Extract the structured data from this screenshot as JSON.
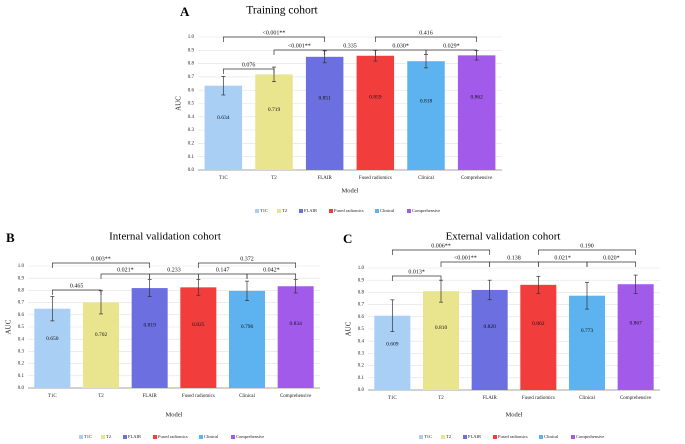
{
  "colors": {
    "T1C": "#a9cff4",
    "T2": "#e8e58e",
    "FLAIR": "#6b6fe0",
    "Fused radiomics": "#f23d3d",
    "Clinical": "#5db3ef",
    "Comprehensive": "#a25aeb",
    "grid": "#e2e2e2",
    "axis": "#888888",
    "text": "#222222"
  },
  "chart_data": [
    {
      "type": "bar",
      "panel_label": "A",
      "title": "Training cohort",
      "xlabel": "Model",
      "ylabel": "AUC",
      "ylim": [
        0,
        1.0
      ],
      "yticks": [
        "0.0",
        "0.1",
        "0.2",
        "0.3",
        "0.4",
        "0.5",
        "0.6",
        "0.7",
        "0.8",
        "0.9",
        "1.0"
      ],
      "categories": [
        "T1C",
        "T2",
        "FLAIR",
        "Fused radiomics",
        "Clinical",
        "Comprehensive"
      ],
      "values": [
        0.634,
        0.719,
        0.851,
        0.859,
        0.818,
        0.862
      ],
      "value_labels": [
        "0.634",
        "0.719",
        "0.851",
        "0.859",
        "0.818",
        "0.862"
      ],
      "errors": [
        0.07,
        0.055,
        0.045,
        0.04,
        0.05,
        0.035
      ],
      "legend": [
        "T1C",
        "T2",
        "FLAIR",
        "Fused radiomics",
        "Clinical",
        "Comprehensive"
      ],
      "comparisons": [
        {
          "from": 0,
          "to": 2,
          "label": "<0.001**",
          "level": 3
        },
        {
          "from": 0,
          "to": 1,
          "label": "0.076",
          "level": 1
        },
        {
          "from": 1,
          "to": 2,
          "label": "<0.001**",
          "level": 2
        },
        {
          "from": 2,
          "to": 3,
          "label": "0.335",
          "level": 2
        },
        {
          "from": 3,
          "to": 4,
          "label": "0.030*",
          "level": 2
        },
        {
          "from": 4,
          "to": 5,
          "label": "0.029*",
          "level": 2
        },
        {
          "from": 3,
          "to": 5,
          "label": "0.416",
          "level": 3
        }
      ]
    },
    {
      "type": "bar",
      "panel_label": "B",
      "title": "Internal validation cohort",
      "xlabel": "Model",
      "ylabel": "AUC",
      "ylim": [
        0,
        1.0
      ],
      "yticks": [
        "0.0",
        "0.1",
        "0.2",
        "0.3",
        "0.4",
        "0.5",
        "0.6",
        "0.7",
        "0.8",
        "0.9",
        "1.0"
      ],
      "categories": [
        "T1C",
        "T2",
        "FLAIR",
        "Fused radiomics",
        "Clinical",
        "Comprehensive"
      ],
      "values": [
        0.65,
        0.702,
        0.819,
        0.825,
        0.796,
        0.834
      ],
      "value_labels": [
        "0.650",
        "0.702",
        "0.819",
        "0.825",
        "0.796",
        "0.834"
      ],
      "errors": [
        0.1,
        0.095,
        0.07,
        0.065,
        0.08,
        0.055
      ],
      "legend": [
        "T1C",
        "T2",
        "FLAIR",
        "Fused radiomics",
        "Clinical",
        "Comprehensive"
      ],
      "comparisons": [
        {
          "from": 0,
          "to": 2,
          "label": "0.003**",
          "level": 3
        },
        {
          "from": 0,
          "to": 1,
          "label": "0.465",
          "level": 1
        },
        {
          "from": 1,
          "to": 2,
          "label": "0.021*",
          "level": 2
        },
        {
          "from": 2,
          "to": 3,
          "label": "0.233",
          "level": 2
        },
        {
          "from": 3,
          "to": 4,
          "label": "0.147",
          "level": 2
        },
        {
          "from": 4,
          "to": 5,
          "label": "0.042*",
          "level": 2
        },
        {
          "from": 3,
          "to": 5,
          "label": "0.372",
          "level": 3
        }
      ]
    },
    {
      "type": "bar",
      "panel_label": "C",
      "title": "External validation cohort",
      "xlabel": "Model",
      "ylabel": "AUC",
      "ylim": [
        0,
        1.0
      ],
      "yticks": [
        "0.0",
        "0.1",
        "0.2",
        "0.3",
        "0.4",
        "0.5",
        "0.6",
        "0.7",
        "0.8",
        "0.9",
        "1.0"
      ],
      "categories": [
        "T1C",
        "T2",
        "FLAIR",
        "Fused radiomics",
        "Clinical",
        "Comprehensive"
      ],
      "values": [
        0.609,
        0.81,
        0.82,
        0.862,
        0.773,
        0.867
      ],
      "value_labels": [
        "0.609",
        "0.810",
        "0.820",
        "0.862",
        "0.773",
        "0.867"
      ],
      "errors": [
        0.13,
        0.09,
        0.08,
        0.07,
        0.11,
        0.075
      ],
      "legend": [
        "T1C",
        "T2",
        "FLAIR",
        "Fused radiomics",
        "Clinical",
        "Comprehensive"
      ],
      "comparisons": [
        {
          "from": 0,
          "to": 2,
          "label": "0.006**",
          "level": 3
        },
        {
          "from": 0,
          "to": 1,
          "label": "0.013*",
          "level": 1
        },
        {
          "from": 1,
          "to": 2,
          "label": "<0.001**",
          "level": 2
        },
        {
          "from": 2,
          "to": 3,
          "label": "0.138",
          "level": 2
        },
        {
          "from": 3,
          "to": 4,
          "label": "0.021*",
          "level": 2
        },
        {
          "from": 4,
          "to": 5,
          "label": "0.020*",
          "level": 2
        },
        {
          "from": 3,
          "to": 5,
          "label": "0.190",
          "level": 3
        }
      ]
    }
  ]
}
